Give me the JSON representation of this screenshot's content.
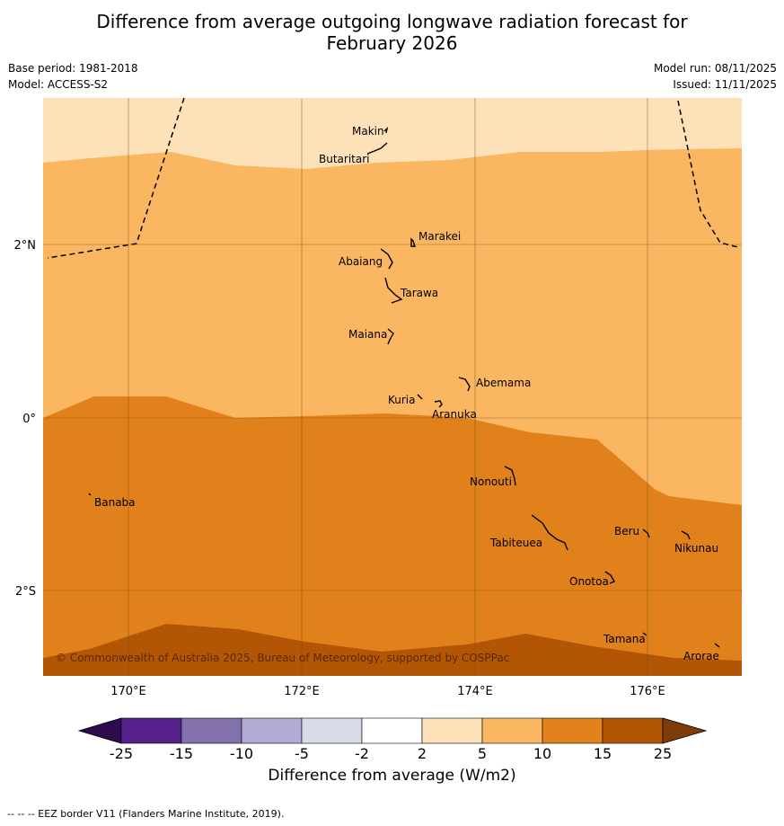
{
  "title_line1": "Difference from average outgoing longwave radiation forecast for",
  "title_line2": "February 2026",
  "base_period": "Base period: 1981-2018",
  "model": "Model: ACCESS-S2",
  "model_run": "Model run: 08/11/2025",
  "issued": "Issued: 11/11/2025",
  "copyright": "© Commonwealth of Australia 2025, Bureau of Meteorology, supported by COSPPac",
  "lat_labels": [
    "2°N",
    "0°",
    "2°S"
  ],
  "lon_labels": [
    "170°E",
    "172°E",
    "174°E",
    "176°E"
  ],
  "places": {
    "makin": "Makin",
    "butaritari": "Butaritari",
    "marakei": "Marakei",
    "abaiang": "Abaiang",
    "tarawa": "Tarawa",
    "maiana": "Maiana",
    "abemama": "Abemama",
    "kuria": "Kuria",
    "aranuka": "Aranuka",
    "nonouti": "Nonouti",
    "banaba": "Banaba",
    "beru": "Beru",
    "tabiteuea": "Tabiteuea",
    "nikunau": "Nikunau",
    "onotoa": "Onotoa",
    "tamana": "Tamana",
    "arorae": "Arorae"
  },
  "colorbar": {
    "label": "Difference from average (W/m2)",
    "ticks": [
      "-25",
      "-15",
      "-10",
      "-5",
      "-2",
      "2",
      "5",
      "10",
      "15",
      "25"
    ],
    "colors": [
      "#56208a",
      "#8271ad",
      "#b2a9d4",
      "#dadbea",
      "#ffffff",
      "#fde1b8",
      "#fab660",
      "#e0811b",
      "#b25606"
    ],
    "under_color": "#2f0a4c",
    "over_color": "#7f3b08"
  },
  "footer": "--  --  -- EEZ border V11 (Flanders Marine Institute, 2019)."
}
